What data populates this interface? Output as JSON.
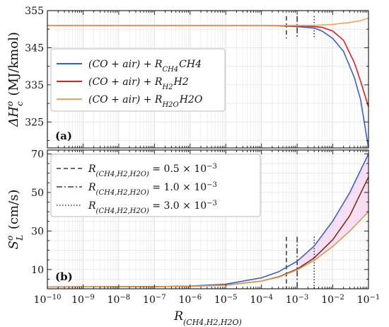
{
  "chart_data": [
    {
      "type": "line",
      "panel_label": "(a)",
      "ylabel": "ΔH_c^o (MJ/kmol)",
      "ylabel_parts": {
        "base": "ΔH",
        "sub": "c",
        "sup": "o",
        "units": "(MJ/kmol)"
      },
      "xscale": "log",
      "xlim": [
        1e-10,
        0.1
      ],
      "ylim": [
        318,
        355
      ],
      "yticks": [
        325,
        335,
        345,
        355
      ],
      "grid": true,
      "legend_position": "left",
      "series": [
        {
          "name": "(CO + air) + R_CH4 CH4",
          "label": {
            "pre": "(CO + air) + R",
            "sub": "CH4",
            "post": "CH4"
          },
          "color": "#3b5fc8",
          "x": [
            1e-10,
            1e-05,
            0.0001,
            0.0003,
            0.001,
            0.003,
            0.005,
            0.01,
            0.02,
            0.04,
            0.06,
            0.1
          ],
          "y": [
            351,
            351,
            351,
            350.9,
            350.7,
            350.3,
            349.5,
            347.5,
            344,
            337,
            331,
            318
          ]
        },
        {
          "name": "(CO + air) + R_H2 H2",
          "label": {
            "pre": "(CO + air) + R",
            "sub": "H2",
            "post": "H2"
          },
          "color": "#e01f1f",
          "x": [
            1e-10,
            1e-05,
            0.0001,
            0.001,
            0.003,
            0.005,
            0.01,
            0.02,
            0.04,
            0.06,
            0.1
          ],
          "y": [
            351,
            351,
            351,
            350.9,
            350.7,
            350.5,
            349.5,
            347,
            341,
            336,
            329
          ]
        },
        {
          "name": "(CO + air) + R_H2O H2O",
          "label": {
            "pre": "(CO + air) + R",
            "sub": "H2O",
            "post": "H2O"
          },
          "color": "#f5a35a",
          "x": [
            1e-10,
            0.0001,
            0.001,
            0.003,
            0.01,
            0.03,
            0.06,
            0.1
          ],
          "y": [
            351,
            351,
            351,
            351,
            351.3,
            351.8,
            352.3,
            353
          ]
        }
      ]
    },
    {
      "type": "line",
      "panel_label": "(b)",
      "ylabel": "S_L^o (cm/s)",
      "ylabel_parts": {
        "base": "S",
        "sub": "L",
        "sup": "o",
        "units": "(cm/s)"
      },
      "xlabel": "R_(CH4,H2,H2O)",
      "xlabel_parts": {
        "base": "R",
        "sub": "(CH4,H2,H2O)"
      },
      "xscale": "log",
      "xlim": [
        1e-10,
        0.1
      ],
      "ylim": [
        0,
        72
      ],
      "yticks": [
        10,
        30,
        50,
        70
      ],
      "xticks_exp": [
        -10,
        -9,
        -8,
        -7,
        -6,
        -5,
        -4,
        -3,
        -2,
        -1
      ],
      "grid": true,
      "legend_position": "top-left",
      "series": [
        {
          "name": "CH4",
          "color": "#3b5fc8",
          "x": [
            1e-10,
            1e-07,
            1e-06,
            1e-05,
            0.0001,
            0.0003,
            0.001,
            0.003,
            0.01,
            0.03,
            0.1
          ],
          "y": [
            1,
            1.1,
            1.4,
            2.4,
            5.7,
            8.8,
            14.3,
            22.2,
            35.2,
            50,
            70
          ]
        },
        {
          "name": "H2",
          "color": "#7a3212",
          "x": [
            1e-10,
            1e-07,
            1e-06,
            1e-05,
            0.0001,
            0.0003,
            0.001,
            0.003,
            0.01,
            0.03,
            0.1
          ],
          "y": [
            1,
            1.1,
            1.3,
            1.9,
            4,
            6.2,
            10.2,
            16,
            25.5,
            38,
            58
          ]
        },
        {
          "name": "H2O",
          "color": "#d79a50",
          "x": [
            1e-10,
            1e-07,
            1e-06,
            1e-05,
            0.0001,
            0.0003,
            0.001,
            0.003,
            0.01,
            0.03,
            0.1
          ],
          "y": [
            1,
            1.1,
            1.3,
            1.9,
            4,
            6,
            9.8,
            14.7,
            22,
            30,
            40
          ]
        }
      ],
      "shade_color": "#f4c8ec"
    }
  ],
  "vlines": [
    {
      "x": 0.0005,
      "style": "dashed",
      "label": {
        "pre": "R",
        "sub": "(CH4,H2,H2O)",
        "post": " = 0.5 × 10",
        "sup": "−3"
      }
    },
    {
      "x": 0.001,
      "style": "dashdot",
      "label": {
        "pre": "R",
        "sub": "(CH4,H2,H2O)",
        "post": " = 1.0 × 10",
        "sup": "−3"
      }
    },
    {
      "x": 0.003,
      "style": "dotted",
      "label": {
        "pre": "R",
        "sub": "(CH4,H2,H2O)",
        "post": " = 3.0 × 10",
        "sup": "−3"
      }
    }
  ]
}
